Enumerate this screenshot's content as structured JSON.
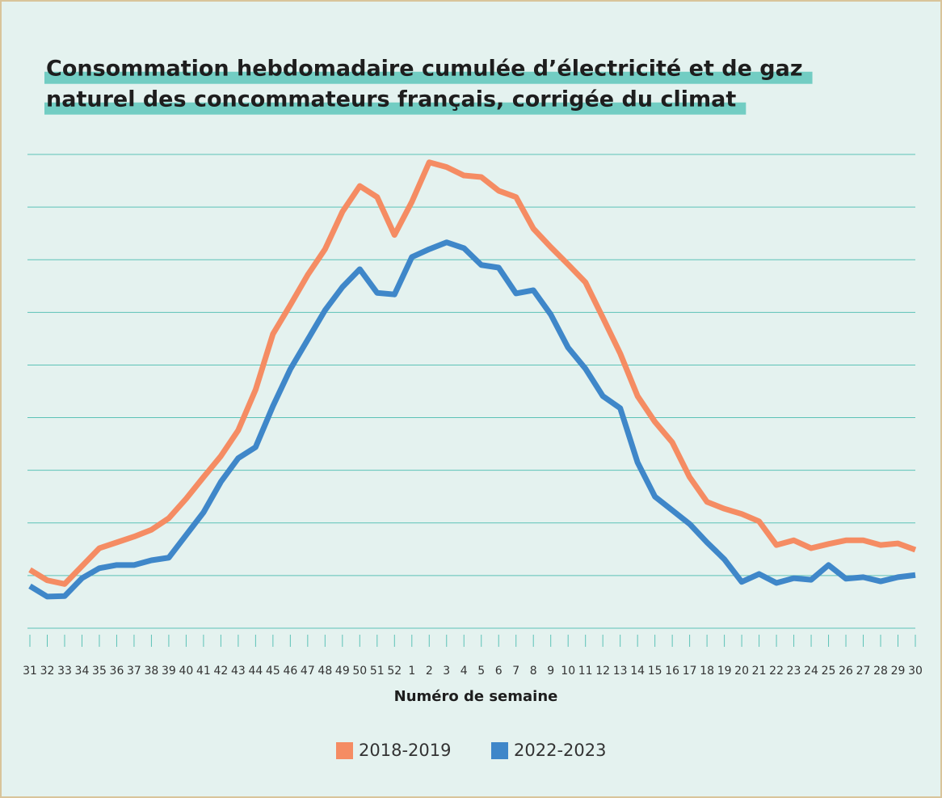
{
  "chart_data": {
    "type": "line",
    "title": [
      "Consommation hebdomadaire cumulée d’électricité et de gaz",
      "naturel des concommateurs français, corrigée du climat"
    ],
    "xlabel": "Numéro de semaine",
    "categories": [
      "31",
      "32",
      "33",
      "34",
      "35",
      "36",
      "37",
      "38",
      "39",
      "40",
      "41",
      "42",
      "43",
      "44",
      "45",
      "46",
      "47",
      "48",
      "49",
      "50",
      "51",
      "52",
      "1",
      "2",
      "3",
      "4",
      "5",
      "6",
      "7",
      "8",
      "9",
      "10",
      "11",
      "12",
      "13",
      "14",
      "15",
      "16",
      "17",
      "18",
      "19",
      "20",
      "21",
      "22",
      "23",
      "24",
      "25",
      "26",
      "27",
      "28",
      "29",
      "30"
    ],
    "series": [
      {
        "name": "2018-2019",
        "color": "#f58c63",
        "values": [
          11.1,
          9.1,
          8.4,
          11.8,
          15.2,
          16.3,
          17.4,
          18.7,
          20.9,
          24.6,
          28.7,
          32.7,
          37.6,
          45.3,
          55.9,
          61.4,
          67.1,
          72.0,
          79.1,
          84.0,
          81.9,
          74.7,
          81.0,
          88.5,
          87.6,
          86.0,
          85.7,
          83.1,
          81.9,
          75.9,
          72.4,
          69.1,
          65.7,
          59.0,
          52.2,
          44.1,
          39.2,
          35.3,
          28.7,
          24.0,
          22.7,
          21.7,
          20.3,
          15.8,
          16.7,
          15.2,
          16.0,
          16.7,
          16.7,
          15.8,
          16.1,
          14.9
        ]
      },
      {
        "name": "2022-2023",
        "color": "#3f87c9",
        "values": [
          8.0,
          6.0,
          6.1,
          9.5,
          11.4,
          12.0,
          12.0,
          12.9,
          13.4,
          17.7,
          22.0,
          27.8,
          32.3,
          34.4,
          42.2,
          49.2,
          54.8,
          60.4,
          64.8,
          68.2,
          63.7,
          63.4,
          70.5,
          72.0,
          73.3,
          72.2,
          69.0,
          68.5,
          63.6,
          64.2,
          59.6,
          53.3,
          49.3,
          44.1,
          41.8,
          31.5,
          25.0,
          22.4,
          19.8,
          16.3,
          13.1,
          8.8,
          10.3,
          8.6,
          9.5,
          9.2,
          12.0,
          9.4,
          9.7,
          8.9,
          9.7,
          10.1
        ]
      }
    ],
    "ylim": [
      0,
      90
    ],
    "yticks": [
      0,
      10,
      20,
      30,
      40,
      50,
      60,
      70,
      80,
      90
    ],
    "grid": true
  }
}
